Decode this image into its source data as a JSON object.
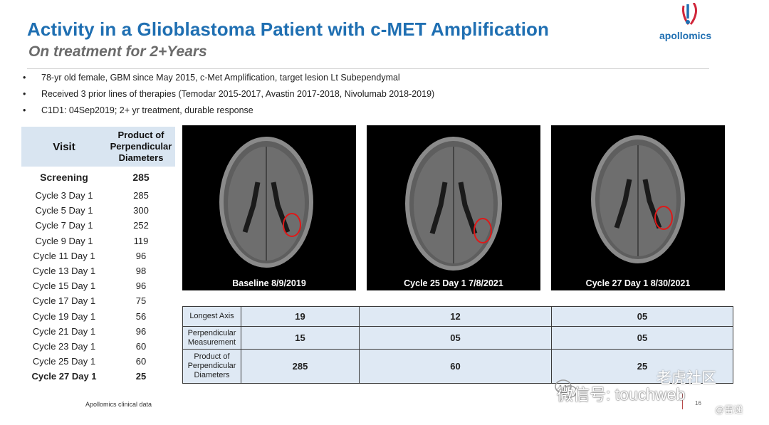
{
  "header": {
    "title": "Activity in a Glioblastoma Patient with c-MET Amplification",
    "subtitle": "On treatment for 2+Years"
  },
  "logo": {
    "text": "apollomics",
    "colors": {
      "blue": "#1f6fb2",
      "red": "#d0263a"
    }
  },
  "bullets": [
    "78-yr old female, GBM since May 2015, c-Met Amplification, target lesion Lt Subependymal",
    "Received 3 prior lines of therapies (Temodar 2015-2017, Avastin 2017-2018, Nivolumab 2018-2019)",
    "C1D1: 04Sep2019;  2+ yr treatment, durable response"
  ],
  "visit_table": {
    "headers": {
      "visit": "Visit",
      "ppd": "Product of Perpendicular Diameters"
    },
    "rows": [
      {
        "visit": "Screening",
        "value": "285"
      },
      {
        "visit": "Cycle 3 Day 1",
        "value": "285"
      },
      {
        "visit": "Cycle 5 Day 1",
        "value": "300"
      },
      {
        "visit": "Cycle 7 Day 1",
        "value": "252"
      },
      {
        "visit": "Cycle 9 Day 1",
        "value": "119"
      },
      {
        "visit": "Cycle 11 Day 1",
        "value": "96"
      },
      {
        "visit": "Cycle 13 Day 1",
        "value": "98"
      },
      {
        "visit": "Cycle 15 Day 1",
        "value": "96"
      },
      {
        "visit": "Cycle 17 Day 1",
        "value": "75"
      },
      {
        "visit": "Cycle 19 Day 1",
        "value": "56"
      },
      {
        "visit": "Cycle 21 Day 1",
        "value": "96"
      },
      {
        "visit": "Cycle 23 Day 1",
        "value": "60"
      },
      {
        "visit": "Cycle 25 Day 1",
        "value": "60"
      },
      {
        "visit": "Cycle 27 Day 1",
        "value": "25"
      }
    ]
  },
  "scans": [
    {
      "caption": "Baseline 8/9/2019"
    },
    {
      "caption": "Cycle 25 Day 1  7/8/2021"
    },
    {
      "caption": "Cycle 27 Day 1  8/30/2021"
    }
  ],
  "measure_table": {
    "rows": [
      {
        "label": "Longest Axis",
        "values": [
          "19",
          "12",
          "05"
        ]
      },
      {
        "label": "Perpendicular Measurement",
        "values": [
          "15",
          "05",
          "05"
        ]
      },
      {
        "label": "Product of Perpendicular Diameters",
        "values": [
          "285",
          "60",
          "25"
        ]
      }
    ]
  },
  "footer": {
    "source": "Apollomics clinical data",
    "page": "16"
  },
  "watermark": {
    "main": "微信号: touchweb",
    "top": "老虎社区",
    "sub": "@雷递"
  }
}
